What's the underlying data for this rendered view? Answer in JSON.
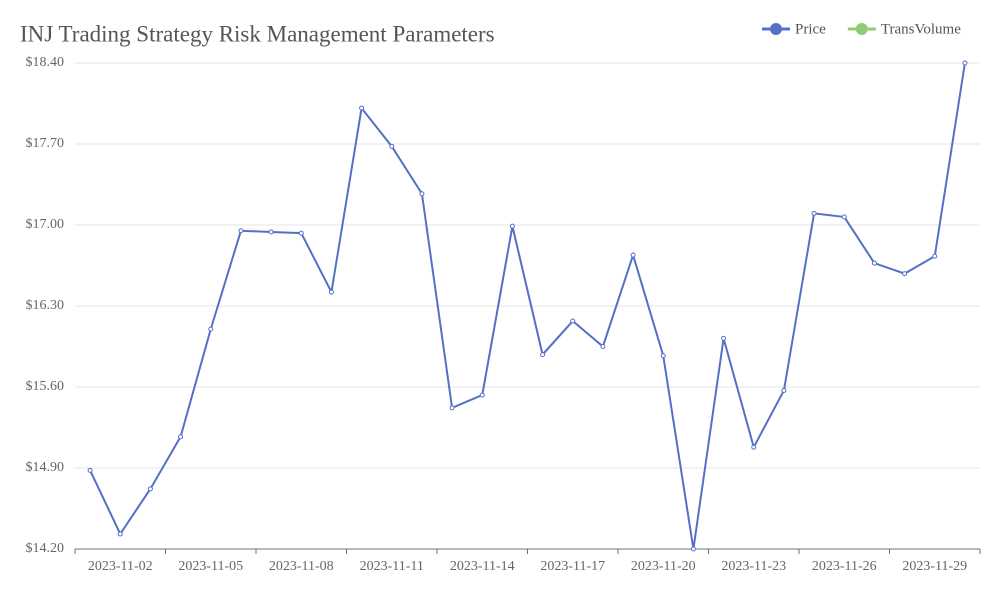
{
  "chart_data": {
    "type": "line",
    "title": "INJ Trading Strategy Risk Management Parameters",
    "categories": [
      null,
      "2023-11-02",
      null,
      null,
      "2023-11-05",
      null,
      null,
      "2023-11-08",
      null,
      null,
      "2023-11-11",
      null,
      null,
      "2023-11-14",
      null,
      null,
      "2023-11-17",
      null,
      null,
      "2023-11-20",
      null,
      null,
      "2023-11-23",
      null,
      null,
      "2023-11-26",
      null,
      null,
      "2023-11-29",
      null
    ],
    "series": [
      {
        "name": "Price",
        "color": "#5470c6",
        "values": [
          14.88,
          14.33,
          14.72,
          15.17,
          16.1,
          16.95,
          16.94,
          16.93,
          16.42,
          18.01,
          17.68,
          17.27,
          15.42,
          15.53,
          16.99,
          15.88,
          16.17,
          15.95,
          16.74,
          15.87,
          14.2,
          16.02,
          15.08,
          15.57,
          17.1,
          17.07,
          16.67,
          16.58,
          16.73,
          18.4
        ]
      },
      {
        "name": "TransVolume",
        "color": "#91cc75",
        "values": [
          null,
          null,
          null,
          null,
          null,
          null,
          null,
          null,
          null,
          null,
          null,
          null,
          null,
          null,
          null,
          null,
          null,
          null,
          null,
          null,
          null,
          null,
          null,
          null,
          null,
          null,
          null,
          null,
          null,
          null
        ]
      }
    ],
    "ylim": [
      14.2,
      18.4
    ],
    "yticks": [
      {
        "value": 14.2,
        "label": "$14.20"
      },
      {
        "value": 14.9,
        "label": "$14.90"
      },
      {
        "value": 15.6,
        "label": "$15.60"
      },
      {
        "value": 16.3,
        "label": "$16.30"
      },
      {
        "value": 17.0,
        "label": "$17.00"
      },
      {
        "value": 17.7,
        "label": "$17.70"
      },
      {
        "value": 18.4,
        "label": "$18.40"
      }
    ],
    "grid": true
  }
}
